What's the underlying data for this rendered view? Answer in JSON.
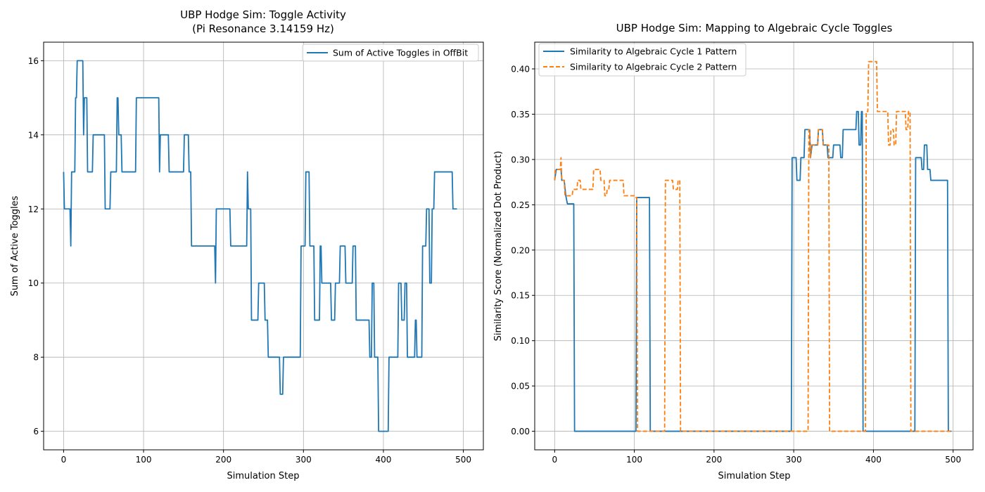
{
  "chart_data": [
    {
      "type": "line",
      "title": "UBP Hodge Sim: Toggle Activity",
      "subtitle": "(Pi Resonance 3.14159 Hz)",
      "xlabel": "Simulation Step",
      "ylabel": "Sum of Active Toggles",
      "xlim": [
        -25,
        525
      ],
      "ylim": [
        5.5,
        16.5
      ],
      "xticks": [
        0,
        100,
        200,
        300,
        400,
        500
      ],
      "yticks": [
        6,
        8,
        10,
        12,
        14,
        16
      ],
      "grid": true,
      "legend_position": "top-right",
      "series": [
        {
          "name": "Sum of Active Toggles in OffBit",
          "color": "#1f77b4",
          "dash": "solid",
          "points": [
            [
              0,
              13
            ],
            [
              1,
              12
            ],
            [
              8,
              12
            ],
            [
              9,
              11
            ],
            [
              10,
              13
            ],
            [
              14,
              13
            ],
            [
              15,
              15
            ],
            [
              16,
              15
            ],
            [
              17,
              16
            ],
            [
              24,
              16
            ],
            [
              25,
              14
            ],
            [
              26,
              15
            ],
            [
              29,
              15
            ],
            [
              30,
              13
            ],
            [
              36,
              13
            ],
            [
              37,
              14
            ],
            [
              51,
              14
            ],
            [
              52,
              12
            ],
            [
              58,
              12
            ],
            [
              59,
              13
            ],
            [
              66,
              13
            ],
            [
              67,
              15
            ],
            [
              68,
              15
            ],
            [
              69,
              14
            ],
            [
              72,
              14
            ],
            [
              73,
              13
            ],
            [
              90,
              13
            ],
            [
              91,
              15
            ],
            [
              119,
              15
            ],
            [
              120,
              13
            ],
            [
              121,
              14
            ],
            [
              131,
              14
            ],
            [
              132,
              13
            ],
            [
              150,
              13
            ],
            [
              151,
              14
            ],
            [
              156,
              14
            ],
            [
              157,
              13
            ],
            [
              159,
              13
            ],
            [
              160,
              11
            ],
            [
              189,
              11
            ],
            [
              190,
              10
            ],
            [
              191,
              12
            ],
            [
              208,
              12
            ],
            [
              209,
              11
            ],
            [
              229,
              11
            ],
            [
              230,
              13
            ],
            [
              231,
              12
            ],
            [
              234,
              12
            ],
            [
              235,
              9
            ],
            [
              243,
              9
            ],
            [
              244,
              10
            ],
            [
              251,
              10
            ],
            [
              252,
              9
            ],
            [
              255,
              9
            ],
            [
              256,
              8
            ],
            [
              270,
              8
            ],
            [
              271,
              7
            ],
            [
              274,
              7
            ],
            [
              275,
              8
            ],
            [
              296,
              8
            ],
            [
              297,
              11
            ],
            [
              302,
              11
            ],
            [
              303,
              13
            ],
            [
              307,
              13
            ],
            [
              308,
              11
            ],
            [
              313,
              11
            ],
            [
              314,
              9
            ],
            [
              320,
              9
            ],
            [
              321,
              11
            ],
            [
              322,
              11
            ],
            [
              323,
              10
            ],
            [
              334,
              10
            ],
            [
              335,
              9
            ],
            [
              339,
              9
            ],
            [
              340,
              10
            ],
            [
              345,
              10
            ],
            [
              346,
              11
            ],
            [
              352,
              11
            ],
            [
              353,
              10
            ],
            [
              361,
              10
            ],
            [
              362,
              11
            ],
            [
              365,
              11
            ],
            [
              366,
              9
            ],
            [
              382,
              9
            ],
            [
              383,
              8
            ],
            [
              385,
              8
            ],
            [
              386,
              10
            ],
            [
              388,
              10
            ],
            [
              389,
              8
            ],
            [
              393,
              8
            ],
            [
              394,
              6
            ],
            [
              406,
              6
            ],
            [
              407,
              8
            ],
            [
              418,
              8
            ],
            [
              419,
              10
            ],
            [
              422,
              10
            ],
            [
              423,
              9
            ],
            [
              426,
              9
            ],
            [
              427,
              10
            ],
            [
              429,
              10
            ],
            [
              430,
              8
            ],
            [
              439,
              8
            ],
            [
              440,
              9
            ],
            [
              441,
              9
            ],
            [
              442,
              8
            ],
            [
              448,
              8
            ],
            [
              449,
              11
            ],
            [
              453,
              11
            ],
            [
              454,
              12
            ],
            [
              457,
              12
            ],
            [
              458,
              10
            ],
            [
              460,
              10
            ],
            [
              461,
              12
            ],
            [
              463,
              12
            ],
            [
              464,
              13
            ],
            [
              486,
              13
            ],
            [
              487,
              12
            ],
            [
              492,
              12
            ]
          ]
        }
      ]
    },
    {
      "type": "line",
      "title": "UBP Hodge Sim: Mapping to Algebraic Cycle Toggles",
      "xlabel": "Simulation Step",
      "ylabel": "Similarity Score (Normalized Dot Product)",
      "xlim": [
        -25,
        525
      ],
      "ylim": [
        -0.0205,
        0.4295
      ],
      "xticks": [
        0,
        100,
        200,
        300,
        400,
        500
      ],
      "yticks": [
        0.0,
        0.05,
        0.1,
        0.15,
        0.2,
        0.25,
        0.3,
        0.35,
        0.4
      ],
      "ytick_labels": [
        "0.00",
        "0.05",
        "0.10",
        "0.15",
        "0.20",
        "0.25",
        "0.30",
        "0.35",
        "0.40"
      ],
      "grid": true,
      "legend_position": "top-left",
      "series": [
        {
          "name": "Similarity to Algebraic Cycle 1 Pattern",
          "color": "#1f77b4",
          "dash": "solid",
          "points": [
            [
              0,
              0.277
            ],
            [
              2,
              0.289
            ],
            [
              8,
              0.289
            ],
            [
              9,
              0.277
            ],
            [
              12,
              0.277
            ],
            [
              14,
              0.26
            ],
            [
              16,
              0.251
            ],
            [
              24,
              0.251
            ],
            [
              25,
              0
            ],
            [
              102,
              0
            ],
            [
              103,
              0.258
            ],
            [
              119,
              0.258
            ],
            [
              120,
              0
            ],
            [
              297,
              0
            ],
            [
              298,
              0.302
            ],
            [
              303,
              0.302
            ],
            [
              304,
              0.277
            ],
            [
              308,
              0.277
            ],
            [
              309,
              0.302
            ],
            [
              313,
              0.302
            ],
            [
              314,
              0.333
            ],
            [
              320,
              0.333
            ],
            [
              321,
              0.302
            ],
            [
              323,
              0.316
            ],
            [
              330,
              0.316
            ],
            [
              331,
              0.333
            ],
            [
              336,
              0.333
            ],
            [
              337,
              0.316
            ],
            [
              342,
              0.316
            ],
            [
              343,
              0.302
            ],
            [
              349,
              0.302
            ],
            [
              350,
              0.316
            ],
            [
              358,
              0.316
            ],
            [
              359,
              0.302
            ],
            [
              361,
              0.302
            ],
            [
              362,
              0.333
            ],
            [
              378,
              0.333
            ],
            [
              379,
              0.353
            ],
            [
              381,
              0.353
            ],
            [
              382,
              0.316
            ],
            [
              384,
              0.316
            ],
            [
              385,
              0.353
            ],
            [
              386,
              0.353
            ],
            [
              387,
              0
            ],
            [
              452,
              0
            ],
            [
              453,
              0.302
            ],
            [
              460,
              0.302
            ],
            [
              461,
              0.289
            ],
            [
              463,
              0.289
            ],
            [
              464,
              0.316
            ],
            [
              467,
              0.316
            ],
            [
              468,
              0.289
            ],
            [
              471,
              0.289
            ],
            [
              472,
              0.277
            ],
            [
              493,
              0.277
            ],
            [
              494,
              0
            ],
            [
              498,
              0
            ]
          ]
        },
        {
          "name": "Similarity to Algebraic Cycle 2 Pattern",
          "color": "#ff7f0e",
          "dash": "dashed",
          "points": [
            [
              0,
              0.277
            ],
            [
              1,
              0.289
            ],
            [
              7,
              0.289
            ],
            [
              8,
              0.302
            ],
            [
              9,
              0.277
            ],
            [
              12,
              0.277
            ],
            [
              13,
              0.26
            ],
            [
              22,
              0.26
            ],
            [
              23,
              0.267
            ],
            [
              28,
              0.267
            ],
            [
              29,
              0.277
            ],
            [
              32,
              0.277
            ],
            [
              33,
              0.267
            ],
            [
              48,
              0.267
            ],
            [
              49,
              0.289
            ],
            [
              57,
              0.289
            ],
            [
              58,
              0.277
            ],
            [
              62,
              0.277
            ],
            [
              63,
              0.26
            ],
            [
              65,
              0.26
            ],
            [
              66,
              0.267
            ],
            [
              68,
              0.267
            ],
            [
              69,
              0.277
            ],
            [
              86,
              0.277
            ],
            [
              87,
              0.26
            ],
            [
              100,
              0.26
            ],
            [
              101,
              0.258
            ],
            [
              103,
              0.258
            ],
            [
              104,
              0
            ],
            [
              138,
              0
            ],
            [
              139,
              0.277
            ],
            [
              148,
              0.277
            ],
            [
              149,
              0.267
            ],
            [
              154,
              0.267
            ],
            [
              155,
              0.277
            ],
            [
              157,
              0.277
            ],
            [
              158,
              0
            ],
            [
              318,
              0
            ],
            [
              319,
              0.333
            ],
            [
              320,
              0.333
            ],
            [
              321,
              0.302
            ],
            [
              322,
              0.316
            ],
            [
              330,
              0.316
            ],
            [
              331,
              0.333
            ],
            [
              336,
              0.333
            ],
            [
              337,
              0.316
            ],
            [
              344,
              0.316
            ],
            [
              345,
              0
            ],
            [
              390,
              0
            ],
            [
              391,
              0.353
            ],
            [
              393,
              0.353
            ],
            [
              394,
              0.408
            ],
            [
              404,
              0.408
            ],
            [
              405,
              0.353
            ],
            [
              418,
              0.353
            ],
            [
              419,
              0.316
            ],
            [
              421,
              0.316
            ],
            [
              422,
              0.333
            ],
            [
              425,
              0.333
            ],
            [
              426,
              0.316
            ],
            [
              428,
              0.316
            ],
            [
              429,
              0.353
            ],
            [
              440,
              0.353
            ],
            [
              441,
              0.333
            ],
            [
              443,
              0.333
            ],
            [
              444,
              0.353
            ],
            [
              446,
              0.353
            ],
            [
              447,
              0
            ],
            [
              498,
              0
            ]
          ]
        }
      ]
    }
  ]
}
